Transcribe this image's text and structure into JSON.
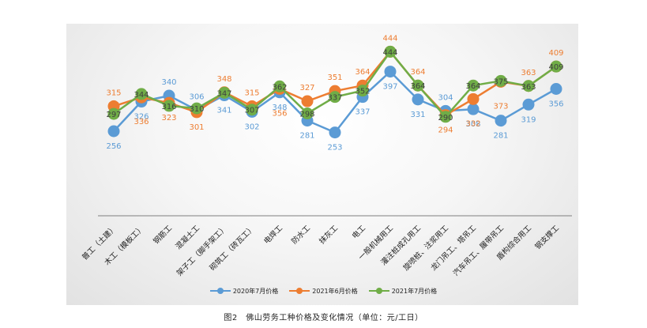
{
  "caption": "图2　佛山劳务工种价格及变化情况（单位：元/工日）",
  "chart_data": {
    "type": "line",
    "categories": [
      "普工（土建）",
      "木工（模板工）",
      "钢筋工",
      "混凝土工",
      "架子工（脚手架工）",
      "砌筑工（砖瓦工）",
      "电焊工",
      "防水工",
      "抹灰工",
      "电工",
      "一般机械用工",
      "灌注桩成孔用工",
      "旋喷桩、注浆用工",
      "龙门吊工、塔吊工",
      "汽车吊工、履带吊工",
      "盾构综合用工",
      "钢支撑工"
    ],
    "series": [
      {
        "name": "2020年7月价格",
        "color": "#5b9bd5",
        "values": [
          256,
          326,
          340,
          306,
          341,
          302,
          348,
          281,
          253,
          337,
          397,
          331,
          304,
          308,
          281,
          319,
          356
        ]
      },
      {
        "name": "2021年6月价格",
        "color": "#ed7d31",
        "values": [
          315,
          336,
          323,
          301,
          348,
          315,
          356,
          327,
          351,
          364,
          444,
          364,
          294,
          332,
          373,
          363,
          409
        ]
      },
      {
        "name": "2021年7月价格",
        "color": "#70ad47",
        "values": [
          297,
          344,
          316,
          310,
          347,
          307,
          362,
          298,
          337,
          352,
          444,
          364,
          290,
          364,
          375,
          363,
          409
        ]
      }
    ],
    "legend_position": "bottom",
    "grid": false
  }
}
